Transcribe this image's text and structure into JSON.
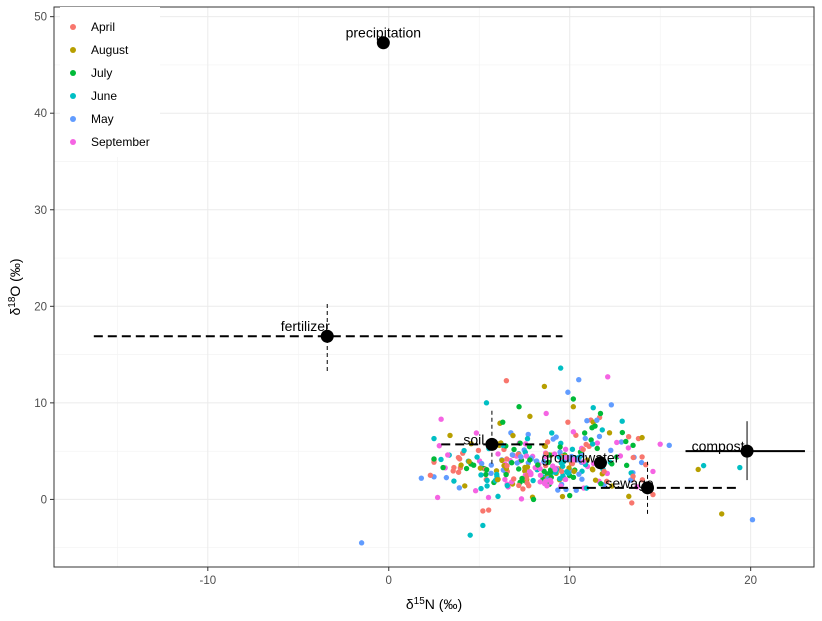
{
  "chart_data": {
    "type": "scatter",
    "xlim": [
      -18.5,
      23.5
    ],
    "ylim": [
      -7,
      51
    ],
    "x_ticks": [
      -10,
      0,
      10,
      20
    ],
    "y_ticks": [
      0,
      10,
      20,
      30,
      40,
      50
    ],
    "x_tick_labels": [
      "-10",
      "0",
      "10",
      "20"
    ],
    "y_tick_labels": [
      "0",
      "10",
      "20",
      "30",
      "40",
      "50"
    ],
    "xlabel": {
      "prefix": "δ",
      "sup": "15",
      "main": "N (‰)"
    },
    "ylabel": {
      "prefix": "δ",
      "sup": "18",
      "main": "O (‰)"
    },
    "grid": true,
    "legend": {
      "placement": "top-left",
      "entries": [
        {
          "name": "April",
          "color": "#F8766D"
        },
        {
          "name": "August",
          "color": "#B79F00"
        },
        {
          "name": "July",
          "color": "#00BA38"
        },
        {
          "name": "June",
          "color": "#00BFC4"
        },
        {
          "name": "May",
          "color": "#619CFF"
        },
        {
          "name": "September",
          "color": "#F564E3"
        }
      ]
    },
    "sources": [
      {
        "name": "precipitation",
        "x": -0.3,
        "y": 47.3
      },
      {
        "name": "fertilizer",
        "x": -3.4,
        "y": 16.9,
        "x_range": [
          -16.3,
          9.6
        ],
        "y_range": [
          13.3,
          20.5
        ],
        "dash": true
      },
      {
        "name": "soil",
        "x": 5.7,
        "y": 5.7,
        "x_range": [
          2.9,
          8.6
        ],
        "y_range": [
          3.7,
          9.2
        ],
        "dash": true
      },
      {
        "name": "groundwater",
        "x": 11.7,
        "y": 3.8
      },
      {
        "name": "sewage",
        "x": 14.3,
        "y": 1.2,
        "x_range": [
          9.4,
          19.2
        ],
        "y_range": [
          -1.5,
          3.9
        ],
        "dash": true
      },
      {
        "name": "compost",
        "x": 19.8,
        "y": 5.0,
        "x_range": [
          16.4,
          23.0
        ],
        "y_range": [
          2.0,
          8.1
        ],
        "dash": false
      }
    ],
    "outlier_points": [
      {
        "x": 6.5,
        "y": 12.3,
        "month": "April"
      },
      {
        "x": 13.8,
        "y": 6.3,
        "month": "April"
      },
      {
        "x": 14.0,
        "y": 4.4,
        "month": "April"
      },
      {
        "x": 14.2,
        "y": 3.6,
        "month": "April"
      },
      {
        "x": 2.3,
        "y": 2.5,
        "month": "April"
      },
      {
        "x": 13.5,
        "y": 2.4,
        "month": "April"
      },
      {
        "x": 14.6,
        "y": 0.5,
        "month": "April"
      },
      {
        "x": 11.9,
        "y": 2.9,
        "month": "April"
      },
      {
        "x": 3.6,
        "y": 3.3,
        "month": "April"
      },
      {
        "x": 9.9,
        "y": 8.0,
        "month": "April"
      },
      {
        "x": 8.6,
        "y": 11.7,
        "month": "August"
      },
      {
        "x": 7.8,
        "y": 8.6,
        "month": "August"
      },
      {
        "x": 14.0,
        "y": 6.4,
        "month": "August"
      },
      {
        "x": 17.1,
        "y": 3.1,
        "month": "August"
      },
      {
        "x": 18.4,
        "y": -1.5,
        "month": "August"
      },
      {
        "x": 12.2,
        "y": 6.9,
        "month": "August"
      },
      {
        "x": 10.2,
        "y": 9.6,
        "month": "August"
      },
      {
        "x": 4.2,
        "y": 1.4,
        "month": "August"
      },
      {
        "x": 11.3,
        "y": 8.0,
        "month": "August"
      },
      {
        "x": 9.6,
        "y": 0.3,
        "month": "August"
      },
      {
        "x": 11.7,
        "y": 8.9,
        "month": "July"
      },
      {
        "x": 13.1,
        "y": 6.0,
        "month": "July"
      },
      {
        "x": 7.2,
        "y": 9.6,
        "month": "July"
      },
      {
        "x": 10.2,
        "y": 10.4,
        "month": "July"
      },
      {
        "x": 3.0,
        "y": 3.3,
        "month": "July"
      },
      {
        "x": 13.5,
        "y": 5.6,
        "month": "July"
      },
      {
        "x": 8.0,
        "y": 0.0,
        "month": "July"
      },
      {
        "x": 11.4,
        "y": 7.6,
        "month": "July"
      },
      {
        "x": 4.3,
        "y": 3.2,
        "month": "July"
      },
      {
        "x": 10.0,
        "y": 0.4,
        "month": "July"
      },
      {
        "x": 6.3,
        "y": 8.0,
        "month": "July"
      },
      {
        "x": 12.6,
        "y": 4.4,
        "month": "July"
      },
      {
        "x": 5.4,
        "y": 10.0,
        "month": "June"
      },
      {
        "x": 9.5,
        "y": 13.6,
        "month": "June"
      },
      {
        "x": 11.3,
        "y": 9.5,
        "month": "June"
      },
      {
        "x": 19.4,
        "y": 3.3,
        "month": "June"
      },
      {
        "x": 17.4,
        "y": 3.5,
        "month": "June"
      },
      {
        "x": 4.5,
        "y": -3.7,
        "month": "June"
      },
      {
        "x": 5.2,
        "y": -2.7,
        "month": "June"
      },
      {
        "x": 11.8,
        "y": 7.2,
        "month": "June"
      },
      {
        "x": 12.9,
        "y": 8.1,
        "month": "June"
      },
      {
        "x": 3.6,
        "y": 1.9,
        "month": "June"
      },
      {
        "x": 10.5,
        "y": 12.4,
        "month": "May"
      },
      {
        "x": 9.9,
        "y": 11.1,
        "month": "May"
      },
      {
        "x": 15.5,
        "y": 5.6,
        "month": "May"
      },
      {
        "x": 20.1,
        "y": -2.1,
        "month": "May"
      },
      {
        "x": -1.5,
        "y": -4.5,
        "month": "May"
      },
      {
        "x": 1.8,
        "y": 2.2,
        "month": "May"
      },
      {
        "x": 12.3,
        "y": 9.8,
        "month": "May"
      },
      {
        "x": 11.5,
        "y": 8.2,
        "month": "May"
      },
      {
        "x": 3.9,
        "y": 1.2,
        "month": "May"
      },
      {
        "x": 12.1,
        "y": 12.7,
        "month": "September"
      },
      {
        "x": 12.8,
        "y": 4.5,
        "month": "September"
      },
      {
        "x": 8.7,
        "y": 8.9,
        "month": "September"
      },
      {
        "x": 2.7,
        "y": 0.2,
        "month": "September"
      },
      {
        "x": 10.2,
        "y": 7.0,
        "month": "September"
      },
      {
        "x": 14.6,
        "y": 2.9,
        "month": "September"
      },
      {
        "x": 4.8,
        "y": 0.9,
        "month": "September"
      },
      {
        "x": 12.6,
        "y": 5.9,
        "month": "September"
      }
    ],
    "cluster": {
      "note": "dense measured samples",
      "months": [
        "April",
        "August",
        "July",
        "June",
        "May",
        "September"
      ],
      "center": [
        8.5,
        3.5
      ],
      "spread": [
        3.2,
        2.2
      ],
      "count": 300
    }
  }
}
